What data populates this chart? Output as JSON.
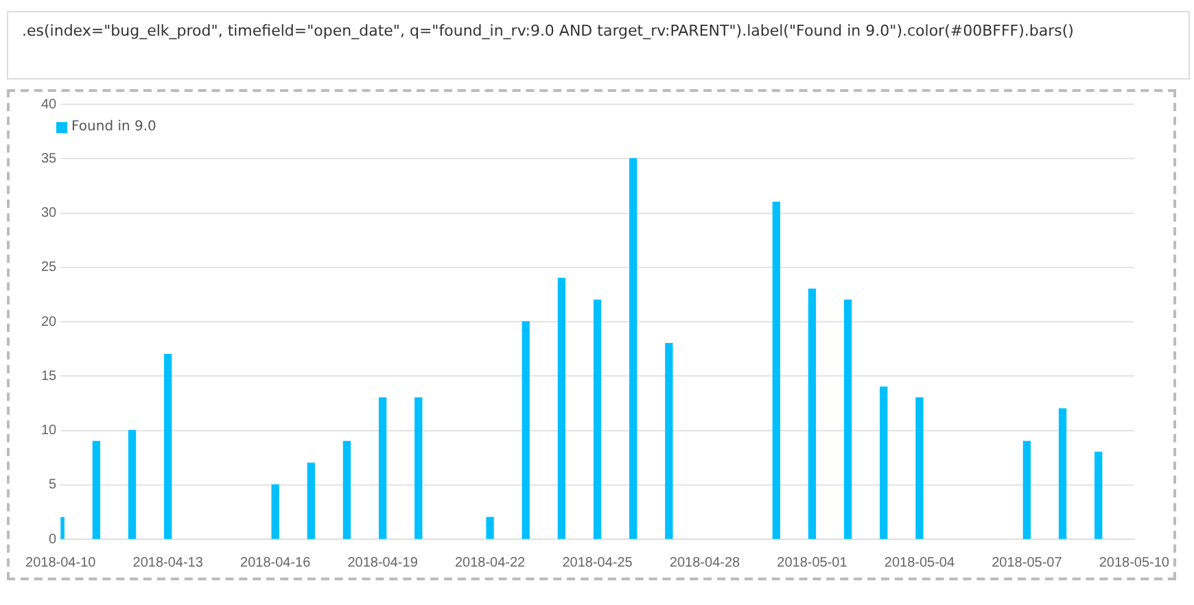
{
  "chart_data": {
    "type": "bar",
    "annotations": [
      ".es(index=\"bug_elk_prod\", timefield=\"open_date\", q=\"found_in_rv:9.0 AND target_rv:PARENT\").label(\"Found in 9.0\").color(#00BFFF).bars()"
    ],
    "x": [
      "2018-04-10",
      "2018-04-11",
      "2018-04-12",
      "2018-04-13",
      "2018-04-16",
      "2018-04-17",
      "2018-04-18",
      "2018-04-19",
      "2018-04-20",
      "2018-04-22",
      "2018-04-23",
      "2018-04-24",
      "2018-04-25",
      "2018-04-26",
      "2018-04-27",
      "2018-04-30",
      "2018-05-01",
      "2018-05-02",
      "2018-05-03",
      "2018-05-04",
      "2018-05-07",
      "2018-05-08",
      "2018-05-09"
    ],
    "series": [
      {
        "name": "Found in 9.0",
        "color": "#00bfff",
        "values": [
          2,
          9,
          10,
          17,
          5,
          7,
          9,
          13,
          13,
          2,
          20,
          24,
          22,
          35,
          18,
          31,
          23,
          22,
          14,
          13,
          9,
          12,
          8
        ]
      }
    ],
    "xlim": [
      "2018-04-10",
      "2018-05-10"
    ],
    "xticks": [
      "2018-04-10",
      "2018-04-13",
      "2018-04-16",
      "2018-04-19",
      "2018-04-22",
      "2018-04-25",
      "2018-04-28",
      "2018-05-01",
      "2018-05-04",
      "2018-05-07",
      "2018-05-10"
    ],
    "ylim": [
      0,
      40
    ],
    "yticks": [
      0,
      5,
      10,
      15,
      20,
      25,
      30,
      35,
      40
    ],
    "grid": "y",
    "legend": "top left"
  }
}
